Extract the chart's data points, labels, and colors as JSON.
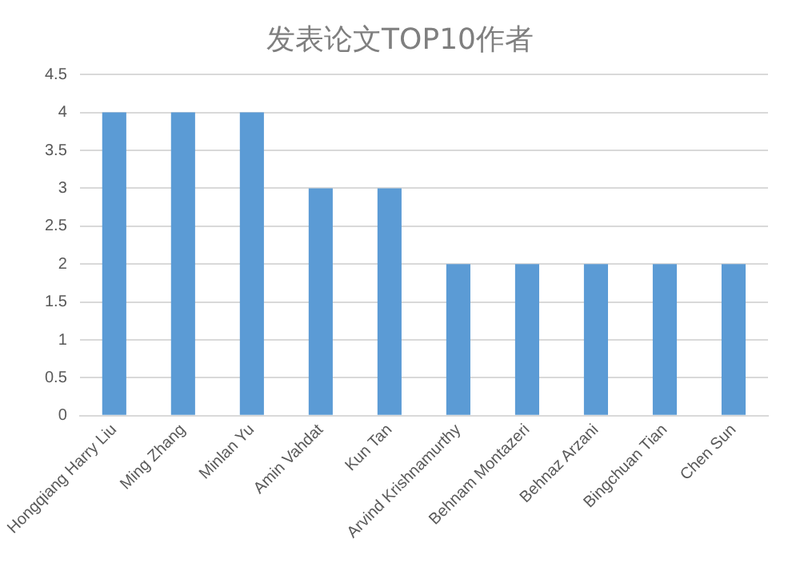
{
  "chart_data": {
    "type": "bar",
    "title": "发表论文TOP10作者",
    "categories": [
      "Hongqiang Harry Liu",
      "Ming Zhang",
      "Minlan Yu",
      "Amin Vahdat",
      "Kun Tan",
      "Arvind Krishnamurthy",
      "Behnam Montazeri",
      "Behnaz Arzani",
      "Bingchuan Tian",
      "Chen Sun"
    ],
    "values": [
      4,
      4,
      4,
      3,
      3,
      2,
      2,
      2,
      2,
      2
    ],
    "color": "#5b9bd5",
    "ylim": [
      0,
      4.5
    ],
    "yticks": [
      0,
      0.5,
      1,
      1.5,
      2,
      2.5,
      3,
      3.5,
      4,
      4.5
    ],
    "grid": "y"
  }
}
